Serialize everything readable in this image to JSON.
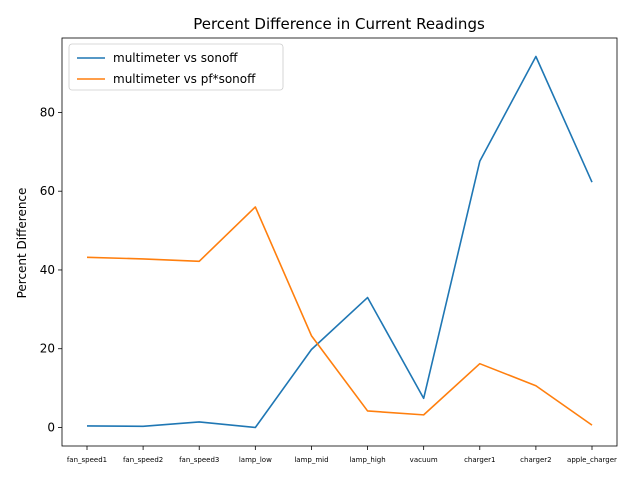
{
  "chart_data": {
    "type": "line",
    "title": "Percent Difference in Current Readings",
    "xlabel": "",
    "ylabel": "Percent Difference",
    "categories": [
      "fan_speed1",
      "fan_speed2",
      "fan_speed3",
      "lamp_low",
      "lamp_mid",
      "lamp_high",
      "vacuum",
      "charger1",
      "charger2",
      "apple_charger"
    ],
    "series": [
      {
        "name": "multimeter vs sonoff",
        "color": "#1f77b4",
        "values": [
          0.4,
          0.3,
          1.4,
          0.0,
          19.8,
          33.0,
          7.4,
          67.6,
          94.2,
          62.3
        ]
      },
      {
        "name": "multimeter vs pf*sonoff",
        "color": "#ff7f0e",
        "values": [
          43.2,
          42.8,
          42.2,
          56.0,
          23.3,
          4.2,
          3.2,
          16.2,
          10.6,
          0.6
        ]
      }
    ],
    "ylim": [
      -4.7,
      98.9
    ],
    "yticks": [
      0,
      20,
      40,
      60,
      80
    ],
    "grid": false,
    "legend": "top-left"
  }
}
